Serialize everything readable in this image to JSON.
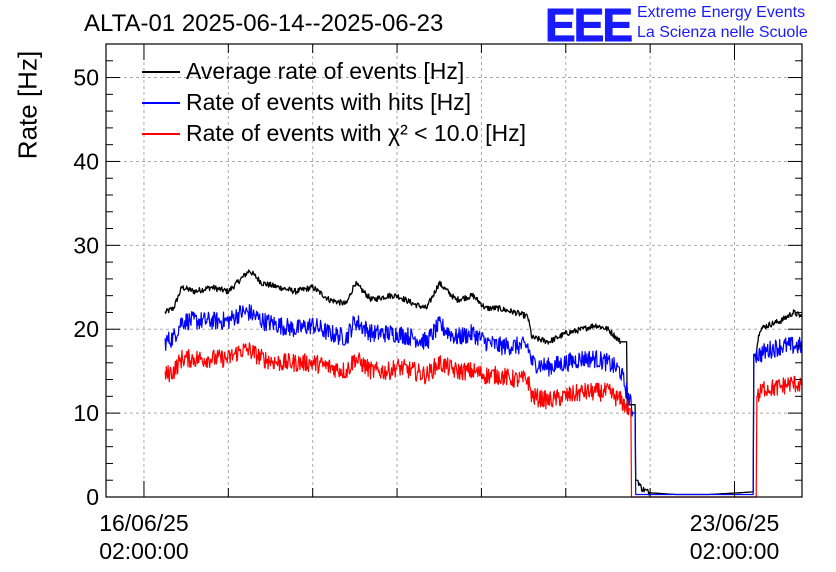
{
  "title": "ALTA-01 2025-06-14--2025-06-23",
  "logo": {
    "text": "EEE",
    "line1": "Extreme Energy Events",
    "line2": "La Scienza nelle Scuole",
    "color": "#1a1aff"
  },
  "chart_data": {
    "type": "line",
    "ylabel": "Rate [Hz]",
    "ylim": [
      0,
      54
    ],
    "yticks": [
      0,
      10,
      20,
      30,
      40,
      50
    ],
    "xlim": [
      -0.45,
      7.8
    ],
    "xticks": [
      {
        "x": 0,
        "date": "16/06/25",
        "time": "02:00:00"
      },
      {
        "x": 7,
        "date": "23/06/25",
        "time": "02:00:00"
      }
    ],
    "grid": true,
    "legend_position": "top-left",
    "series": [
      {
        "name": "Average rate of events [Hz]",
        "color": "#000000",
        "points": [
          [
            0.25,
            22
          ],
          [
            0.35,
            22.5
          ],
          [
            0.45,
            25
          ],
          [
            0.6,
            24.5
          ],
          [
            0.8,
            25
          ],
          [
            1,
            24.5
          ],
          [
            1.15,
            26
          ],
          [
            1.25,
            27
          ],
          [
            1.4,
            25.5
          ],
          [
            1.6,
            25
          ],
          [
            1.8,
            24.5
          ],
          [
            2,
            25
          ],
          [
            2.2,
            23.5
          ],
          [
            2.4,
            23
          ],
          [
            2.5,
            25.5
          ],
          [
            2.7,
            23.5
          ],
          [
            2.9,
            24
          ],
          [
            3,
            24
          ],
          [
            3.2,
            23
          ],
          [
            3.35,
            22.5
          ],
          [
            3.5,
            25.5
          ],
          [
            3.7,
            23.5
          ],
          [
            3.9,
            24
          ],
          [
            4.05,
            22.5
          ],
          [
            4.2,
            22.5
          ],
          [
            4.4,
            22
          ],
          [
            4.55,
            21.5
          ],
          [
            4.6,
            19
          ],
          [
            4.8,
            18.5
          ],
          [
            5,
            19.5
          ],
          [
            5.2,
            20
          ],
          [
            5.35,
            20.5
          ],
          [
            5.5,
            20
          ],
          [
            5.65,
            18.5
          ],
          [
            5.8,
            11
          ],
          [
            5.85,
            2
          ],
          [
            5.9,
            1
          ],
          [
            6,
            0.5
          ],
          [
            6.3,
            0.3
          ],
          [
            6.7,
            0.3
          ],
          [
            7.05,
            0.5
          ],
          [
            7.2,
            0.6
          ],
          [
            7.25,
            17
          ],
          [
            7.3,
            20
          ],
          [
            7.4,
            20.5
          ],
          [
            7.55,
            21
          ],
          [
            7.7,
            22
          ],
          [
            7.8,
            21.5
          ]
        ]
      },
      {
        "name": "Rate of events with hits [Hz]",
        "color": "#0000ff",
        "points": [
          [
            0.25,
            18.5
          ],
          [
            0.35,
            19
          ],
          [
            0.45,
            21
          ],
          [
            0.6,
            21
          ],
          [
            0.8,
            21
          ],
          [
            1,
            21
          ],
          [
            1.15,
            22
          ],
          [
            1.25,
            22
          ],
          [
            1.4,
            21
          ],
          [
            1.6,
            20.5
          ],
          [
            1.8,
            20
          ],
          [
            2,
            20.5
          ],
          [
            2.2,
            19.5
          ],
          [
            2.4,
            19
          ],
          [
            2.5,
            21
          ],
          [
            2.7,
            19.5
          ],
          [
            2.9,
            19.5
          ],
          [
            3,
            19.5
          ],
          [
            3.2,
            19
          ],
          [
            3.35,
            18.5
          ],
          [
            3.5,
            20.5
          ],
          [
            3.7,
            19
          ],
          [
            3.9,
            19.5
          ],
          [
            4.05,
            18.5
          ],
          [
            4.2,
            18
          ],
          [
            4.4,
            18
          ],
          [
            4.55,
            18
          ],
          [
            4.6,
            16
          ],
          [
            4.8,
            15.5
          ],
          [
            5,
            16
          ],
          [
            5.2,
            16.5
          ],
          [
            5.35,
            16.5
          ],
          [
            5.5,
            16
          ],
          [
            5.65,
            15
          ],
          [
            5.8,
            10
          ],
          [
            5.85,
            0.3
          ],
          [
            7.2,
            0.3
          ],
          [
            7.25,
            17
          ],
          [
            7.3,
            17
          ],
          [
            7.4,
            17.5
          ],
          [
            7.55,
            18
          ],
          [
            7.7,
            18
          ],
          [
            7.8,
            18
          ]
        ]
      },
      {
        "name": "Rate of events with χ² < 10.0 [Hz]",
        "color": "#ff0000",
        "points": [
          [
            0.25,
            14.5
          ],
          [
            0.35,
            15
          ],
          [
            0.45,
            16.5
          ],
          [
            0.6,
            16.5
          ],
          [
            0.8,
            16.5
          ],
          [
            1,
            16.5
          ],
          [
            1.15,
            17.5
          ],
          [
            1.25,
            17.5
          ],
          [
            1.4,
            16.5
          ],
          [
            1.6,
            16
          ],
          [
            1.8,
            16
          ],
          [
            2,
            16
          ],
          [
            2.2,
            15.5
          ],
          [
            2.4,
            15
          ],
          [
            2.5,
            16.5
          ],
          [
            2.7,
            15
          ],
          [
            2.9,
            15
          ],
          [
            3,
            15.5
          ],
          [
            3.2,
            15
          ],
          [
            3.35,
            14.5
          ],
          [
            3.5,
            16
          ],
          [
            3.7,
            15
          ],
          [
            3.9,
            15
          ],
          [
            4.05,
            14.5
          ],
          [
            4.2,
            14.5
          ],
          [
            4.4,
            14
          ],
          [
            4.55,
            14
          ],
          [
            4.6,
            12
          ],
          [
            4.8,
            11.5
          ],
          [
            5,
            12
          ],
          [
            5.2,
            12.5
          ],
          [
            5.35,
            12.5
          ],
          [
            5.5,
            12.5
          ],
          [
            5.65,
            11.5
          ],
          [
            5.75,
            10.5
          ],
          [
            5.8,
            0
          ],
          [
            7.25,
            0
          ],
          [
            7.28,
            12
          ],
          [
            7.35,
            13
          ],
          [
            7.5,
            13
          ],
          [
            7.65,
            13.5
          ],
          [
            7.8,
            13.5
          ]
        ]
      }
    ]
  }
}
